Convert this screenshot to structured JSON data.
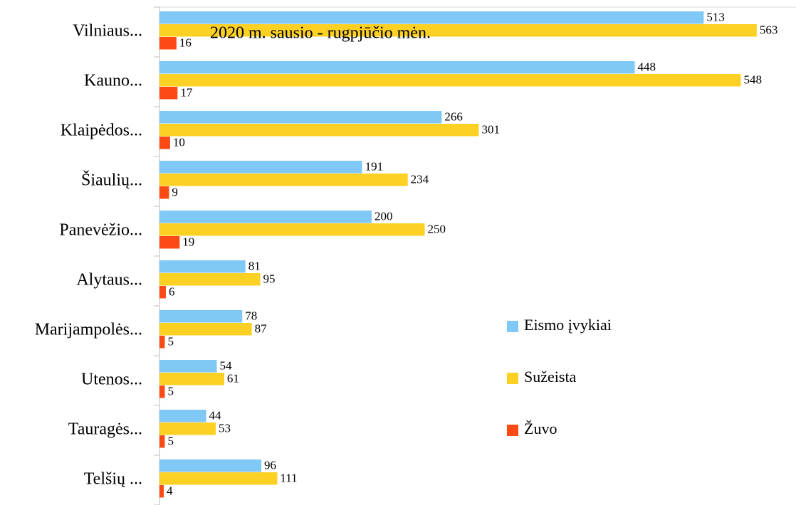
{
  "chart_data": {
    "type": "bar",
    "orientation": "horizontal",
    "title": "2020 m. sausio - rugpjūčio mėn.",
    "categories": [
      "Vilniaus...",
      "Kauno...",
      "Klaipėdos...",
      "Šiaulių...",
      "Panevėžio...",
      "Alytaus...",
      "Marijampolės...",
      "Utenos...",
      "Tauragės...",
      "Telšių ..."
    ],
    "series": [
      {
        "name": "Eismo įvykiai",
        "color": "#80c8f5",
        "values": [
          513,
          448,
          266,
          191,
          200,
          81,
          78,
          54,
          44,
          96
        ]
      },
      {
        "name": "Sužeista",
        "color": "#fdd024",
        "values": [
          563,
          548,
          301,
          234,
          250,
          95,
          87,
          61,
          53,
          111
        ]
      },
      {
        "name": "Žuvo",
        "color": "#fc4a14",
        "values": [
          16,
          17,
          10,
          9,
          19,
          6,
          5,
          5,
          5,
          4
        ]
      }
    ],
    "xlim": [
      0,
      600
    ],
    "legend": "right"
  }
}
